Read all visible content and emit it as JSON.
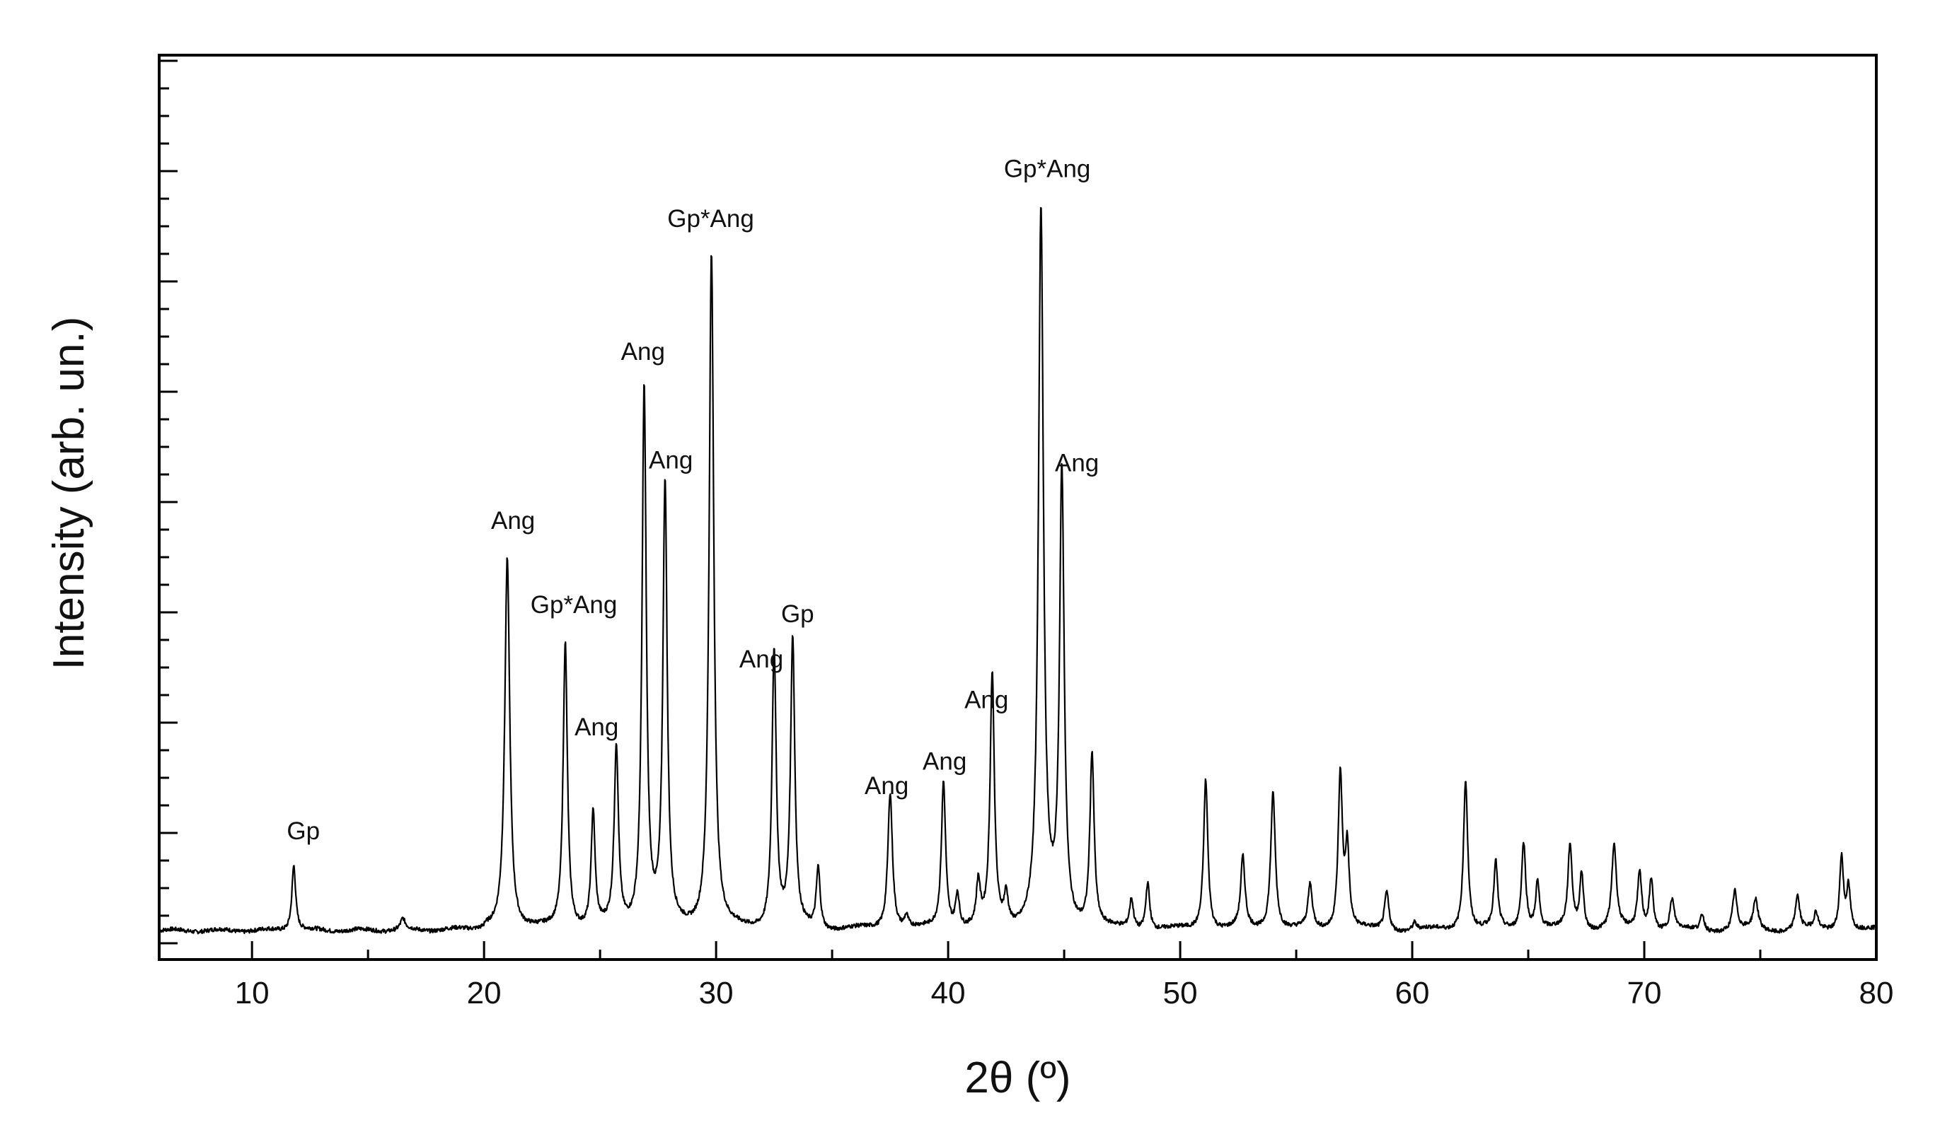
{
  "chart_data": {
    "type": "line",
    "title": "",
    "xlabel": "2θ (º)",
    "ylabel": "Intensity (arb. un.)",
    "xlim": [
      6,
      80
    ],
    "ylim": [
      0,
      100
    ],
    "grid": false,
    "y_tick_labels": false,
    "x_ticks": [
      10,
      20,
      30,
      40,
      50,
      60,
      70,
      80
    ],
    "x_tick_labels": [
      "10",
      "20",
      "30",
      "40",
      "50",
      "60",
      "70",
      "80"
    ],
    "baseline": 3.2,
    "series": [
      {
        "color": "#000000",
        "peaks": [
          [
            11.8,
            10.5,
            0.1
          ],
          [
            16.5,
            4.4,
            0.12
          ],
          [
            21.0,
            44.5,
            0.13
          ],
          [
            23.5,
            35.0,
            0.11
          ],
          [
            24.7,
            16.0,
            0.1
          ],
          [
            25.7,
            23.0,
            0.11
          ],
          [
            26.9,
            63.0,
            0.11
          ],
          [
            27.8,
            52.0,
            0.11
          ],
          [
            29.8,
            78.0,
            0.12
          ],
          [
            32.5,
            34.0,
            0.11
          ],
          [
            33.3,
            35.0,
            0.11
          ],
          [
            34.4,
            10.0,
            0.1
          ],
          [
            37.5,
            18.5,
            0.12
          ],
          [
            38.2,
            4.5,
            0.1
          ],
          [
            39.8,
            19.5,
            0.11
          ],
          [
            40.4,
            7.0,
            0.1
          ],
          [
            41.3,
            8.0,
            0.1
          ],
          [
            41.9,
            31.0,
            0.11
          ],
          [
            42.5,
            6.5,
            0.1
          ],
          [
            44.0,
            82.5,
            0.13
          ],
          [
            44.9,
            53.0,
            0.12
          ],
          [
            46.2,
            22.5,
            0.11
          ],
          [
            47.9,
            6.5,
            0.1
          ],
          [
            48.6,
            8.5,
            0.1
          ],
          [
            51.1,
            20.0,
            0.11
          ],
          [
            52.7,
            11.0,
            0.11
          ],
          [
            54.0,
            18.5,
            0.12
          ],
          [
            55.6,
            8.0,
            0.11
          ],
          [
            56.9,
            20.5,
            0.11
          ],
          [
            57.2,
            12.0,
            0.1
          ],
          [
            58.9,
            7.5,
            0.11
          ],
          [
            60.1,
            4.0,
            0.1
          ],
          [
            62.3,
            20.0,
            0.11
          ],
          [
            63.6,
            10.5,
            0.1
          ],
          [
            64.8,
            13.0,
            0.11
          ],
          [
            65.4,
            8.5,
            0.1
          ],
          [
            66.8,
            12.5,
            0.11
          ],
          [
            67.3,
            9.5,
            0.1
          ],
          [
            68.7,
            12.5,
            0.12
          ],
          [
            69.8,
            9.5,
            0.11
          ],
          [
            70.3,
            9.0,
            0.1
          ],
          [
            71.2,
            6.5,
            0.11
          ],
          [
            72.5,
            5.0,
            0.1
          ],
          [
            73.9,
            7.5,
            0.11
          ],
          [
            74.8,
            6.5,
            0.12
          ],
          [
            76.6,
            7.0,
            0.11
          ],
          [
            77.4,
            5.0,
            0.1
          ],
          [
            78.5,
            11.5,
            0.1
          ],
          [
            78.8,
            8.0,
            0.1
          ]
        ]
      }
    ],
    "annotations": [
      {
        "text": "Gp",
        "x": 11.5,
        "y": 13.3
      },
      {
        "text": "Ang",
        "x": 20.3,
        "y": 47.6
      },
      {
        "text": "Gp*Ang",
        "x": 22.0,
        "y": 38.3
      },
      {
        "text": "Ang",
        "x": 23.9,
        "y": 24.8
      },
      {
        "text": "Ang",
        "x": 25.9,
        "y": 66.3
      },
      {
        "text": "Ang",
        "x": 27.1,
        "y": 54.3
      },
      {
        "text": "Gp*Ang",
        "x": 27.9,
        "y": 81.0
      },
      {
        "text": "Ang",
        "x": 31.0,
        "y": 32.3
      },
      {
        "text": "Gp",
        "x": 32.8,
        "y": 37.3
      },
      {
        "text": "Ang",
        "x": 36.4,
        "y": 18.3
      },
      {
        "text": "Ang",
        "x": 38.9,
        "y": 21.0
      },
      {
        "text": "Ang",
        "x": 40.7,
        "y": 27.8
      },
      {
        "text": "Gp*Ang",
        "x": 42.4,
        "y": 86.5
      },
      {
        "text": "Ang",
        "x": 44.6,
        "y": 54.0
      }
    ]
  }
}
